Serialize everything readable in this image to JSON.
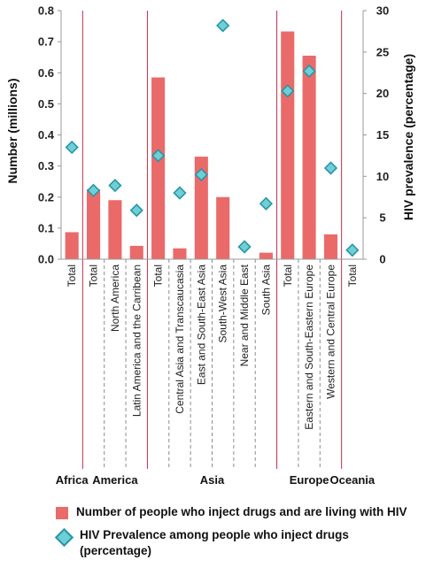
{
  "chart_data": {
    "type": "bar",
    "y_left": {
      "label": "Number (millions)",
      "ticks": [
        "0.0",
        "0.1",
        "0.2",
        "0.3",
        "0.4",
        "0.5",
        "0.6",
        "0.7",
        "0.8"
      ],
      "range": [
        0,
        0.8
      ]
    },
    "y_right": {
      "label": "HIV prevalence (percentage)",
      "ticks": [
        "0",
        "5",
        "10",
        "15",
        "20",
        "25",
        "30"
      ],
      "range": [
        0,
        30
      ]
    },
    "categories": [
      "Total",
      "Total",
      "North America",
      "Latin America and the Carribean",
      "Total",
      "Central Asia and Transcaucasia",
      "East and South-East Asia",
      "South-West Asia",
      "Near and Middle East",
      "South Asia",
      "Total",
      "Eastern and South-Eastern Europe",
      "Western and Central Europe",
      "Total"
    ],
    "groups": [
      {
        "name": "Africa",
        "count": 1
      },
      {
        "name": "America",
        "count": 3
      },
      {
        "name": "Asia",
        "count": 6
      },
      {
        "name": "Europe",
        "count": 3
      },
      {
        "name": "Oceania",
        "count": 1
      }
    ],
    "series": [
      {
        "name": "Number of people who inject drugs and are living with HIV",
        "kind": "bar",
        "axis": "left",
        "color": "#EA6A6A",
        "values": [
          0.087,
          0.225,
          0.19,
          0.043,
          0.585,
          0.035,
          0.33,
          0.2,
          null,
          0.021,
          0.733,
          0.655,
          0.08,
          null
        ]
      },
      {
        "name": "HIV Prevalence among people who inject drugs (percentage)",
        "kind": "marker",
        "marker": "diamond",
        "axis": "right",
        "color": "#6ECFD5",
        "edge": "#2A95A8",
        "values": [
          13.5,
          8.3,
          8.9,
          5.9,
          12.5,
          8.0,
          10.2,
          28.2,
          1.5,
          6.7,
          20.3,
          22.7,
          11.0,
          1.1
        ]
      }
    ],
    "group_separator_color": "#C0304A",
    "grid": false,
    "legend_position": "bottom"
  }
}
